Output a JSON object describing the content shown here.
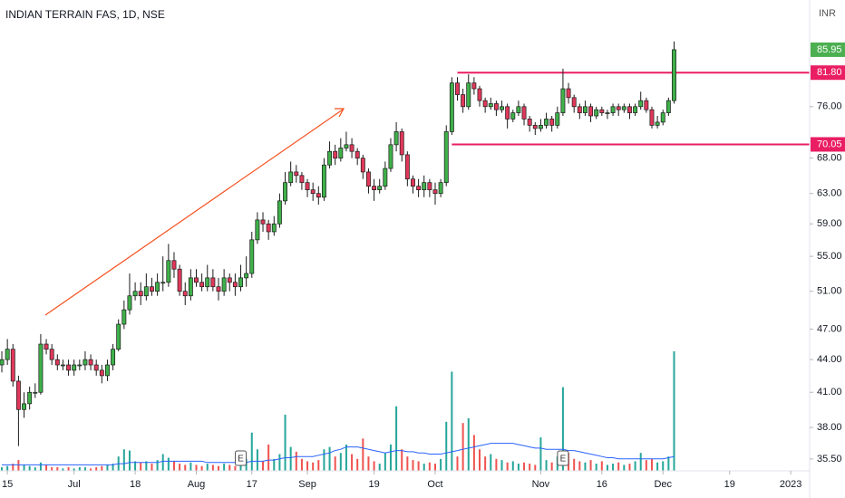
{
  "chart_data": {
    "type": "candlestick",
    "title": "INDIAN TERRAIN FAS, 1D, NSE",
    "currency": "INR",
    "log_scale": true,
    "ylim": [
      34.6,
      95.7
    ],
    "yticks": [
      {
        "value": 35.5,
        "label": "35.50"
      },
      {
        "value": 38,
        "label": "38.00"
      },
      {
        "value": 41,
        "label": "41.00"
      },
      {
        "value": 44,
        "label": "44.00"
      },
      {
        "value": 47,
        "label": "47.00"
      },
      {
        "value": 51,
        "label": "51.00"
      },
      {
        "value": 55,
        "label": "55.00"
      },
      {
        "value": 59,
        "label": "59.00"
      },
      {
        "value": 63,
        "label": "63.00"
      },
      {
        "value": 68,
        "label": "68.00"
      },
      {
        "value": 76,
        "label": "76.00"
      }
    ],
    "xlim": [
      -0.33,
      145.4
    ],
    "xticks": [
      {
        "value": 1,
        "label": "15"
      },
      {
        "value": 13,
        "label": "Jul"
      },
      {
        "value": 24,
        "label": "18"
      },
      {
        "value": 35,
        "label": "Aug"
      },
      {
        "value": 45,
        "label": "17"
      },
      {
        "value": 55,
        "label": "Sep"
      },
      {
        "value": 67,
        "label": "19"
      },
      {
        "value": 78,
        "label": "Oct"
      },
      {
        "value": 97,
        "label": "Nov"
      },
      {
        "value": 108,
        "label": "16"
      },
      {
        "value": 119,
        "label": "Dec"
      },
      {
        "value": 131,
        "label": "19"
      },
      {
        "value": 142,
        "label": "2023"
      }
    ],
    "up_color": "#3fb04a",
    "down_color": "#e0385a",
    "volume_up_color": "#26a69a",
    "volume_down_color": "#ef5350",
    "volume_ma_color": "#2962ff",
    "last_price": {
      "value": 85.95,
      "label": "85.95",
      "color": "#4caf50"
    },
    "levels": [
      {
        "value": 81.8,
        "label": "81.80",
        "start_index": 82,
        "color": "#e91e63"
      },
      {
        "value": 70.05,
        "label": "70.05",
        "start_index": 81,
        "color": "#e91e63"
      }
    ],
    "events": [
      {
        "index": 43,
        "label": "E"
      },
      {
        "index": 101,
        "label": "E"
      }
    ],
    "open": [
      43.5,
      44,
      45,
      42,
      39.5,
      40,
      41,
      41,
      45.5,
      45,
      44,
      43.5,
      43.5,
      43,
      43.5,
      43.5,
      44,
      43.5,
      43,
      42.5,
      43.5,
      45,
      47.5,
      49,
      50.5,
      51,
      50.5,
      51.5,
      51,
      52,
      52,
      54.5,
      53.5,
      51,
      50.5,
      52.5,
      52,
      51.5,
      52.5,
      51.5,
      51,
      52.5,
      52,
      51.5,
      52.5,
      53,
      57,
      59.5,
      59,
      58,
      59,
      62,
      64.5,
      66,
      65.5,
      64.5,
      63.5,
      63,
      62.5,
      67,
      69,
      68,
      69.5,
      70,
      69,
      68,
      66,
      64,
      63.5,
      64,
      66.5,
      70,
      72,
      68.5,
      65,
      64,
      63.5,
      64.5,
      63.5,
      63,
      64.5,
      72,
      80,
      78,
      76,
      80,
      79,
      77,
      76,
      76.5,
      75.5,
      76,
      74,
      75,
      76,
      74,
      73,
      72.5,
      73,
      74,
      73,
      75,
      79,
      77.5,
      76,
      75,
      76,
      74.5,
      75.5,
      75,
      75,
      76,
      75.5,
      76,
      75,
      76,
      77,
      75.5,
      73,
      73.5,
      75,
      77
    ],
    "high": [
      44.8,
      46,
      45.5,
      42.5,
      41,
      41.5,
      41.8,
      46.5,
      46,
      45.5,
      44.5,
      44,
      44,
      44,
      44,
      44.8,
      44.5,
      44,
      43.5,
      44,
      45.5,
      48,
      50,
      53,
      52,
      52,
      53,
      52.5,
      53,
      55,
      56.5,
      55.5,
      54,
      52,
      53.5,
      53.5,
      53,
      54,
      53.5,
      52.5,
      53.5,
      53,
      53,
      54,
      55,
      58,
      60.5,
      60.5,
      59.5,
      60,
      63,
      66,
      67.5,
      67,
      66,
      65,
      64.5,
      64,
      68,
      70.5,
      70,
      71,
      72,
      71,
      69.5,
      68.5,
      66.5,
      65,
      65,
      67.5,
      71,
      73.5,
      72.5,
      69,
      65.5,
      65,
      65.5,
      65,
      64.5,
      65,
      73,
      81,
      81,
      79,
      81.5,
      81,
      79.5,
      77.5,
      77.5,
      77,
      77,
      76.5,
      75.5,
      77,
      76.5,
      74.5,
      73.5,
      74,
      75,
      74.5,
      76,
      82.5,
      80,
      78,
      76.5,
      77,
      76.5,
      76,
      76,
      75.5,
      76.5,
      76.5,
      76.5,
      76.5,
      76.5,
      78.5,
      77.5,
      76,
      74.5,
      75.5,
      77.5,
      87.5
    ],
    "low": [
      42.8,
      43.5,
      41.5,
      36.5,
      38.8,
      39.5,
      40.5,
      40.8,
      44.5,
      43.5,
      43,
      43,
      42.5,
      42.5,
      43,
      43,
      43,
      42.5,
      41.8,
      42,
      43,
      44.8,
      47,
      48.5,
      50,
      49.5,
      50,
      50.5,
      50.5,
      51,
      51.5,
      52.5,
      50.5,
      49.5,
      50,
      51.5,
      51,
      51,
      51,
      50,
      50.5,
      51,
      50.5,
      51,
      51.5,
      52.5,
      56.5,
      58,
      57,
      57.5,
      58.5,
      61.5,
      64,
      64.5,
      63.5,
      62.5,
      62,
      61.5,
      62,
      66.5,
      67,
      67.5,
      69,
      68,
      67,
      65,
      63,
      62,
      63,
      63.5,
      66,
      69,
      67.5,
      64,
      63,
      62.5,
      62.5,
      62.5,
      61.5,
      62.5,
      64,
      71.5,
      77,
      75,
      75.5,
      78,
      76,
      75,
      75.5,
      74.5,
      75,
      72.5,
      73.5,
      74.5,
      73,
      72,
      71.5,
      72,
      72.5,
      72,
      72.5,
      74.5,
      76.5,
      75,
      74,
      74.5,
      73.5,
      74,
      74.5,
      74,
      74.5,
      74.5,
      75,
      74,
      74.5,
      75.5,
      75,
      72.5,
      72.5,
      73,
      74.5,
      76.5
    ],
    "close": [
      44,
      45,
      42,
      39.5,
      40,
      41,
      41,
      45.5,
      45,
      44,
      43.5,
      43.5,
      43,
      43.5,
      43.5,
      44,
      43.5,
      43,
      42.5,
      43.5,
      45,
      47.5,
      49,
      50.5,
      51,
      50.5,
      51.5,
      51,
      52,
      52,
      54.5,
      53.5,
      51,
      50.5,
      52.5,
      52,
      51.5,
      52.5,
      51.5,
      51,
      52.5,
      52,
      51.5,
      52.5,
      53,
      57,
      59.5,
      59,
      58,
      59,
      62,
      64.5,
      66,
      65.5,
      64.5,
      63.5,
      63,
      62.5,
      67,
      69,
      68,
      69.5,
      70,
      69,
      68,
      66,
      64,
      63.5,
      64,
      66.5,
      70,
      72,
      68.5,
      65,
      64,
      63.5,
      64.5,
      63.5,
      63,
      64.5,
      72,
      80,
      78,
      76,
      80,
      79,
      77,
      76,
      76.5,
      75.5,
      76,
      74,
      75,
      76,
      74,
      73,
      72.5,
      73,
      74,
      73,
      75,
      79,
      77.5,
      76,
      75,
      76,
      74.5,
      75.5,
      75,
      75,
      76,
      75.5,
      76,
      75,
      76,
      77,
      75.5,
      73,
      73.5,
      75,
      77,
      85.95
    ],
    "volume_lim": [
      0,
      100
    ],
    "volume": [
      3,
      4,
      6,
      9,
      5,
      4,
      3,
      7,
      5,
      3,
      3,
      2,
      3,
      2,
      3,
      3,
      2,
      3,
      4,
      5,
      6,
      12,
      18,
      17,
      8,
      7,
      8,
      6,
      9,
      14,
      11,
      8,
      6,
      5,
      7,
      5,
      4,
      6,
      5,
      4,
      6,
      5,
      4,
      8,
      10,
      32,
      18,
      8,
      22,
      10,
      14,
      47,
      20,
      16,
      10,
      8,
      7,
      9,
      18,
      20,
      12,
      15,
      22,
      14,
      10,
      27,
      12,
      8,
      6,
      15,
      22,
      54,
      18,
      12,
      9,
      8,
      6,
      7,
      6,
      10,
      41,
      83,
      12,
      40,
      44,
      30,
      18,
      12,
      14,
      10,
      9,
      7,
      8,
      6,
      7,
      6,
      5,
      28,
      9,
      7,
      12,
      70,
      15,
      10,
      8,
      7,
      9,
      6,
      8,
      5,
      6,
      7,
      5,
      6,
      8,
      15,
      9,
      10,
      7,
      8,
      12,
      100
    ],
    "volume_ma": [
      5,
      5,
      5,
      5,
      5,
      5,
      5,
      5,
      5,
      5,
      5,
      5,
      5,
      5,
      5,
      5,
      5,
      5,
      5,
      5,
      5,
      6,
      6,
      7,
      7,
      7,
      7,
      7,
      7,
      8,
      8,
      8,
      8,
      8,
      8,
      8,
      8,
      7,
      7,
      7,
      7,
      7,
      7,
      7,
      7,
      8,
      8,
      8,
      9,
      9,
      10,
      11,
      11,
      12,
      12,
      12,
      12,
      13,
      14,
      15,
      17,
      18,
      20,
      20,
      20,
      19,
      18,
      17,
      16,
      15,
      16,
      17,
      17,
      16,
      16,
      15,
      15,
      14,
      14,
      14,
      15,
      16,
      17,
      18,
      19,
      20,
      21,
      22,
      23,
      23,
      23,
      23,
      23,
      22,
      21,
      20,
      19,
      19,
      18,
      18,
      18,
      18,
      17,
      17,
      16,
      15,
      14,
      13,
      12,
      11,
      11,
      10,
      10,
      10,
      10,
      10,
      10,
      10,
      10,
      10,
      11,
      12
    ]
  }
}
